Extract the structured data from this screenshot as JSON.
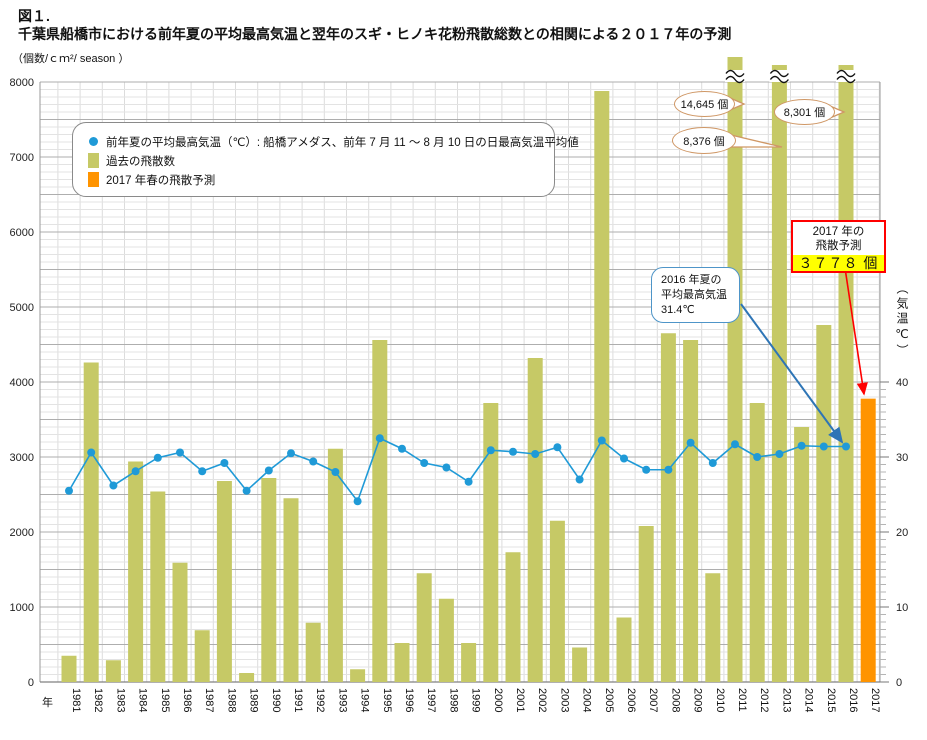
{
  "figure_label": "図１.",
  "title": "千葉県船橋市における前年夏の平均最高気温と翌年のスギ・ヒノキ花粉飛散総数との相関による２０１７年の予測",
  "axis_units": {
    "left": "（個数/ｃｍ²/ season ）",
    "right": "（気温℃）",
    "x": "年"
  },
  "legend": {
    "temp_label": "前年夏の平均最高気温（℃）: 船橋アメダス、前年 7 月 11 ～ 8 月 10 日の日最高気温平均値",
    "past_label": "過去の飛散数",
    "forecast_label": "2017 年春の飛散予測"
  },
  "annotations": {
    "bubble_2011": "14,645 個",
    "bubble_2013": "8,376 個",
    "bubble_2016": "8,301 個",
    "forecast_box": {
      "line1": "2017 年の",
      "line2": "飛散予測",
      "value": "３７７８ 個"
    },
    "temp_note": {
      "line1": "2016 年夏の",
      "line2": "平均最高気温",
      "line3": "31.4℃"
    }
  },
  "colors": {
    "bar_past": "#c6c966",
    "bar_forecast": "#ff9400",
    "temp_line": "#1f9ad7",
    "grid_minor": "#e3e3e3",
    "grid_major": "#aeaeae",
    "axis": "#808080",
    "bubble_outline": "#cf9765",
    "forecast_border": "#ff0000",
    "forecast_value_bg": "#ffff00",
    "temp_note_border": "#4e95c8",
    "arrow_blue": "#2e75b6",
    "arrow_red": "#ff0000"
  },
  "chart_data": {
    "type": "bar+line combo",
    "title": "千葉県船橋市における前年夏の平均最高気温と翌年のスギ・ヒノキ花粉飛散総数との相関による２０１７年の予測",
    "categories": [
      1981,
      1982,
      1983,
      1984,
      1985,
      1986,
      1987,
      1988,
      1989,
      1990,
      1991,
      1992,
      1993,
      1994,
      1995,
      1996,
      1997,
      1998,
      1999,
      2000,
      2001,
      2002,
      2003,
      2004,
      2005,
      2006,
      2007,
      2008,
      2009,
      2010,
      2011,
      2012,
      2013,
      2014,
      2015,
      2016,
      2017
    ],
    "series": [
      {
        "name": "過去の飛散数",
        "type": "bar",
        "axis": "left",
        "values": [
          350,
          4260,
          290,
          2940,
          2540,
          1590,
          690,
          2680,
          120,
          2720,
          2450,
          790,
          3110,
          170,
          4560,
          520,
          1450,
          1110,
          520,
          3720,
          1730,
          4320,
          2150,
          460,
          7880,
          860,
          2080,
          4650,
          4560,
          1450,
          14645,
          3720,
          8376,
          3400,
          4760,
          8301,
          null
        ]
      },
      {
        "name": "2017 年春の飛散予測",
        "type": "bar",
        "axis": "left",
        "values": [
          null,
          null,
          null,
          null,
          null,
          null,
          null,
          null,
          null,
          null,
          null,
          null,
          null,
          null,
          null,
          null,
          null,
          null,
          null,
          null,
          null,
          null,
          null,
          null,
          null,
          null,
          null,
          null,
          null,
          null,
          null,
          null,
          null,
          null,
          null,
          null,
          3778
        ]
      },
      {
        "name": "前年夏の平均最高気温（℃）",
        "type": "line",
        "axis": "right",
        "values": [
          25.5,
          30.6,
          26.2,
          28.1,
          29.9,
          30.6,
          28.1,
          29.2,
          25.5,
          28.2,
          30.5,
          29.4,
          28.0,
          24.1,
          32.5,
          31.1,
          29.2,
          28.6,
          26.7,
          30.9,
          30.7,
          30.4,
          31.3,
          27.0,
          32.2,
          29.8,
          28.3,
          28.3,
          31.9,
          29.2,
          31.7,
          30.0,
          30.4,
          31.5,
          31.4,
          31.4,
          null
        ]
      }
    ],
    "off_scale_bars": [
      {
        "year": 2011,
        "value": 14645
      },
      {
        "year": 2013,
        "value": 8376
      },
      {
        "year": 2016,
        "value": 8301
      }
    ],
    "forecast_2017": 3778,
    "temp_2016_summer": 31.4,
    "y_left": {
      "unit": "個数/cm²/season",
      "min": 0,
      "max": 8000,
      "major_step": 1000,
      "minor_step": 100
    },
    "y_right": {
      "unit": "気温 ℃",
      "min": 0,
      "max": 40,
      "major_step": 10,
      "top_aligned_with_left_value": 4000
    },
    "x_label": "年",
    "grid": true,
    "legend_position": "inside top-left"
  }
}
